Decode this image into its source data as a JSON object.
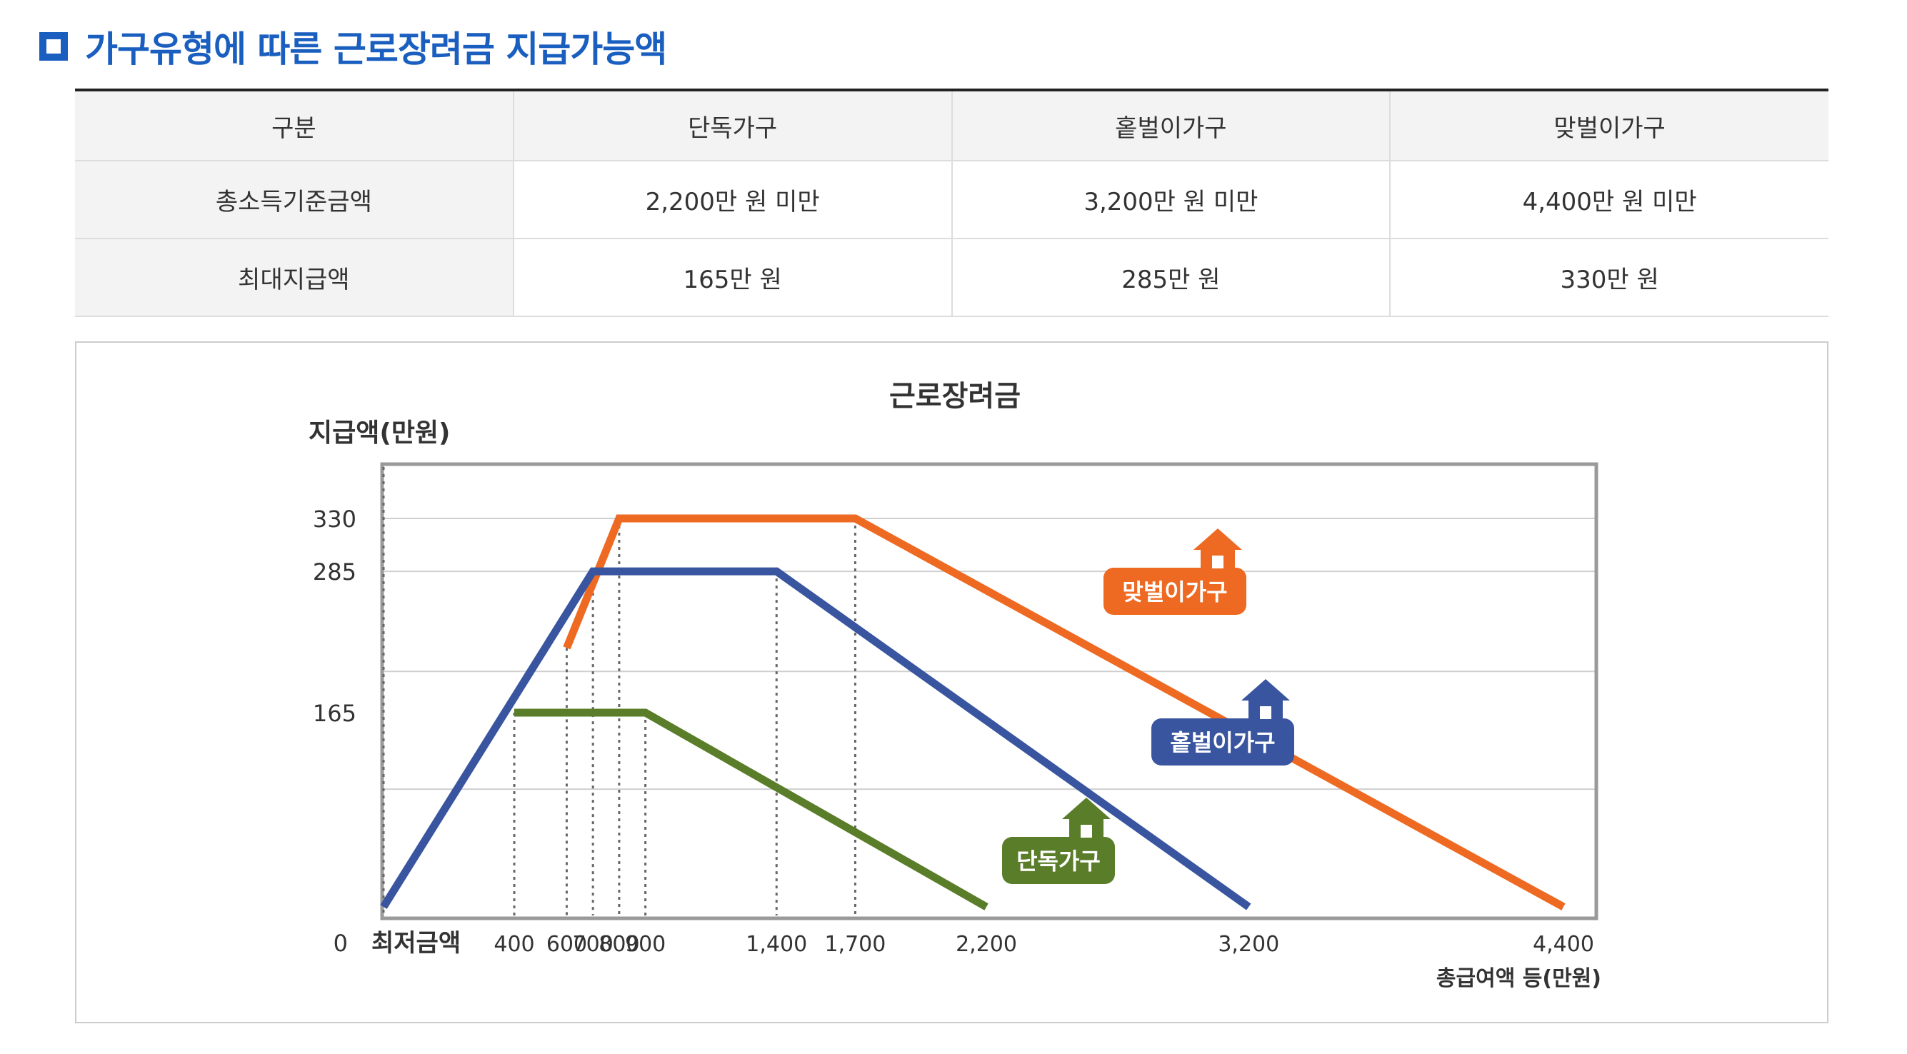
{
  "section_title": "가구유형에 따른 근로장려금 지급가능액",
  "table": {
    "headers": [
      "구분",
      "단독가구",
      "홑벌이가구",
      "맞벌이가구"
    ],
    "rows": [
      [
        "총소득기준금액",
        "2,200만 원 미만",
        "3,200만 원 미만",
        "4,400만 원 미만"
      ],
      [
        "최대지급액",
        "165만 원",
        "285만 원",
        "330만 원"
      ]
    ]
  },
  "chart_data": {
    "type": "line",
    "title": "근로장려금",
    "ylabel": "지급액(만원)",
    "xlabel": "총급여액 등(만원)",
    "x_origin_label": "0",
    "x_min_label": "최저금액",
    "x_ticks": [
      {
        "value": 400,
        "label": "400"
      },
      {
        "value": 600,
        "label": "600"
      },
      {
        "value": 700,
        "label": "700"
      },
      {
        "value": 800,
        "label": "800"
      },
      {
        "value": 900,
        "label": "900"
      },
      {
        "value": 1400,
        "label": "1,400"
      },
      {
        "value": 1700,
        "label": "1,700"
      },
      {
        "value": 2200,
        "label": "2,200"
      },
      {
        "value": 3200,
        "label": "3,200"
      },
      {
        "value": 4400,
        "label": "4,400"
      }
    ],
    "y_ticks": [
      {
        "value": 0,
        "label": "0"
      },
      {
        "value": 165,
        "label": "165"
      },
      {
        "value": 285,
        "label": "285"
      },
      {
        "value": 330,
        "label": "330"
      }
    ],
    "xlim": [
      0,
      4400
    ],
    "ylim": [
      0,
      380
    ],
    "grid": true,
    "series": [
      {
        "name": "맞벌이가구",
        "color": "#ee6a22",
        "icon": "house-icon",
        "points": [
          [
            600,
            220
          ],
          [
            800,
            330
          ],
          [
            1700,
            330
          ],
          [
            4400,
            0
          ]
        ]
      },
      {
        "name": "홑벌이가구",
        "color": "#3a55a0",
        "icon": "house-icon",
        "points": [
          [
            0,
            0
          ],
          [
            700,
            285
          ],
          [
            1400,
            285
          ],
          [
            3200,
            0
          ]
        ]
      },
      {
        "name": "단독가구",
        "color": "#5a7d2a",
        "icon": "house-icon",
        "points": [
          [
            400,
            165
          ],
          [
            900,
            165
          ],
          [
            2200,
            0
          ]
        ]
      }
    ]
  }
}
